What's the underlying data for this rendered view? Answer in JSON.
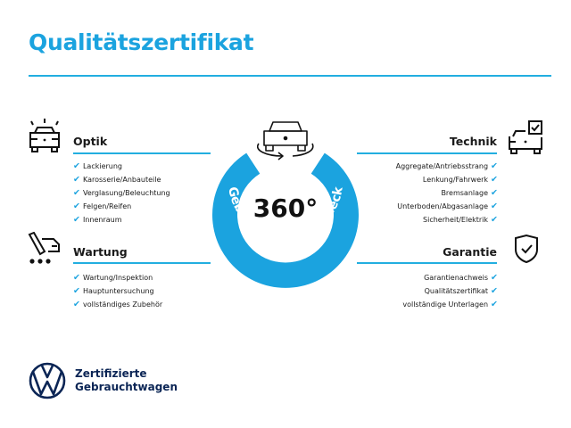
{
  "title": "Qualitätszertifikat",
  "colors": {
    "accent": "#1ba3df",
    "brand_navy": "#0b2555"
  },
  "center": {
    "value": "360°",
    "arc_text": "Gebrauchtwagen-Check",
    "icon": "car-360-rotate-icon"
  },
  "sections": {
    "optik": {
      "title": "Optik",
      "icon": "car-lights-icon",
      "items": [
        "Lackierung",
        "Karosserie/Anbauteile",
        "Verglasung/Beleuchtung",
        "Felgen/Reifen",
        "Innenraum"
      ]
    },
    "wartung": {
      "title": "Wartung",
      "icon": "service-tools-car-icon",
      "items": [
        "Wartung/Inspektion",
        "Hauptuntersuchung",
        "vollständiges Zubehör"
      ]
    },
    "technik": {
      "title": "Technik",
      "icon": "car-checkbox-icon",
      "items": [
        "Aggregate/Antriebsstrang",
        "Lenkung/Fahrwerk",
        "Bremsanlage",
        "Unterboden/Abgasanlage",
        "Sicherheit/Elektrik"
      ]
    },
    "garantie": {
      "title": "Garantie",
      "icon": "shield-check-icon",
      "items": [
        "Garantienachweis",
        "Qualitätszertifikat",
        "vollständige Unterlagen"
      ]
    }
  },
  "check_mark": "✔",
  "footer": {
    "line1": "Zertifizierte",
    "line2": "Gebrauchtwagen",
    "logo": "vw-logo"
  }
}
